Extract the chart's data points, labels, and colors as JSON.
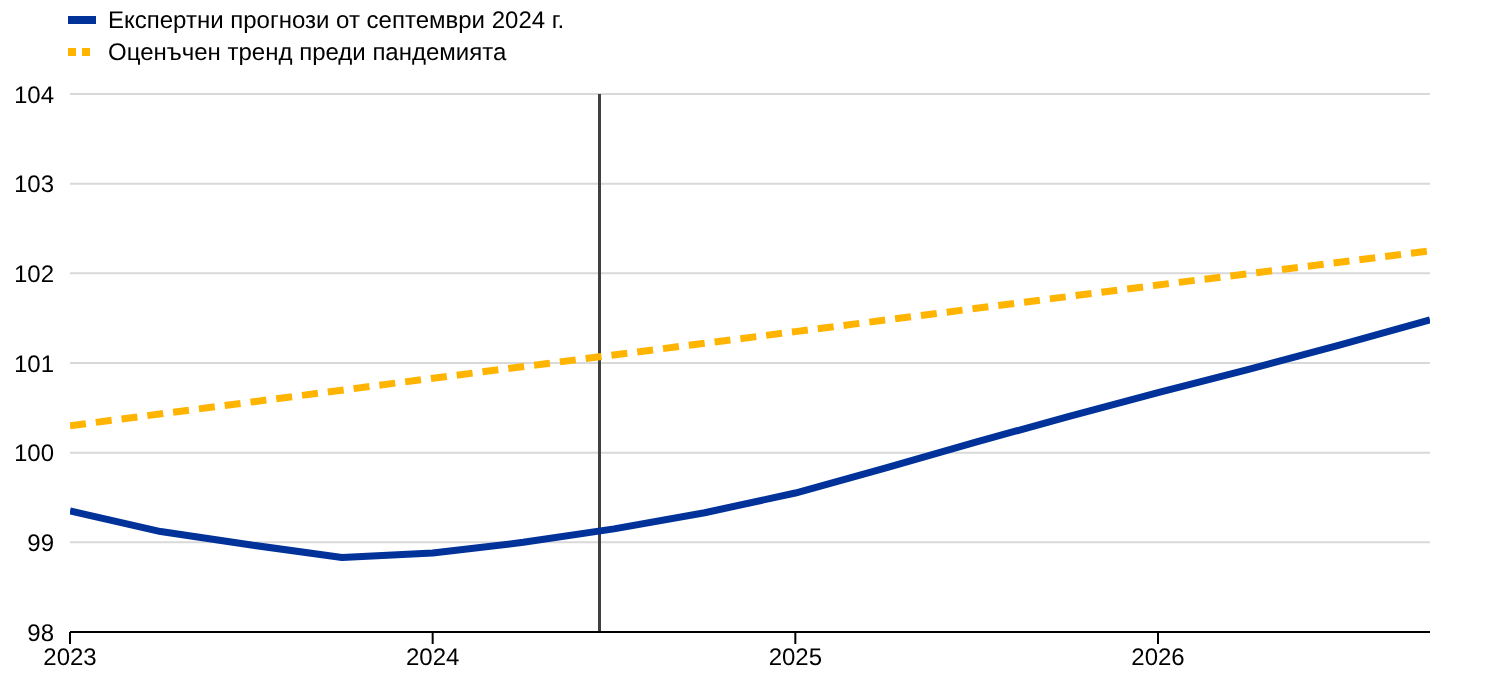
{
  "chart_data": {
    "type": "line",
    "xlim": [
      2023,
      2026.75
    ],
    "xticks": [
      2023,
      2024,
      2025,
      2026
    ],
    "ylim": [
      98,
      104
    ],
    "yticks": [
      98,
      99,
      100,
      101,
      102,
      103,
      104
    ],
    "grid": "y",
    "legend": "top left",
    "series": [
      {
        "name": "Експертни прогнози от септември 2024 г.",
        "color": "#003299",
        "line_style": "solid",
        "x": [
          2023,
          2023.25,
          2023.5,
          2023.75,
          2024,
          2024.25,
          2024.5,
          2024.75,
          2025,
          2025.25,
          2025.5,
          2025.75,
          2026,
          2026.25,
          2026.5,
          2026.75
        ],
        "values": [
          99.35,
          99.12,
          98.97,
          98.83,
          98.88,
          99.0,
          99.15,
          99.33,
          99.55,
          99.83,
          100.12,
          100.4,
          100.67,
          100.93,
          101.2,
          101.48
        ]
      },
      {
        "name": "Оценъчен тренд преди пандемията",
        "color": "#ffb400",
        "line_style": "dashed",
        "x": [
          2023,
          2024,
          2025,
          2026,
          2026.75
        ],
        "values": [
          100.3,
          100.83,
          101.35,
          101.87,
          102.25
        ]
      }
    ],
    "ref_lines": [
      {
        "axis": "x",
        "value": 2024.46,
        "color": "#404040"
      }
    ]
  }
}
